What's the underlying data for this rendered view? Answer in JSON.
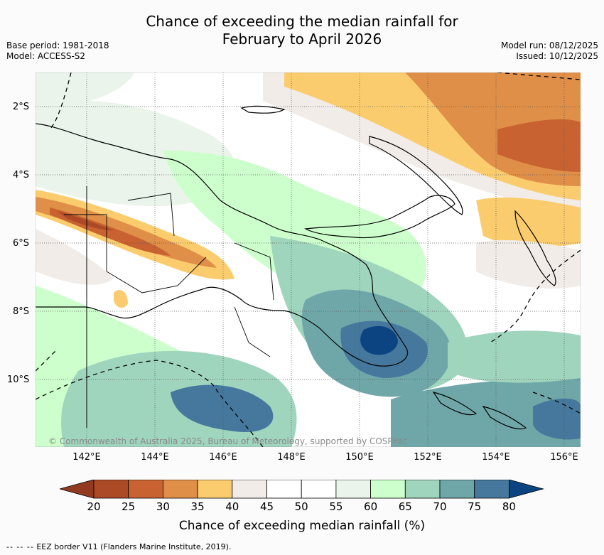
{
  "title": {
    "line1": "Chance of exceeding the median rainfall for",
    "line2": "February to April 2026"
  },
  "meta": {
    "base_period": "Base period: 1981-2018",
    "model": "Model: ACCESS-S2",
    "model_run": "Model run: 08/12/2025",
    "issued": "Issued: 10/12/2025"
  },
  "map": {
    "lat_labels": [
      "2°S",
      "4°S",
      "6°S",
      "8°S",
      "10°S"
    ],
    "lon_labels": [
      "142°E",
      "144°E",
      "146°E",
      "148°E",
      "150°E",
      "152°E",
      "154°E",
      "156°E"
    ],
    "copyright": "© Commonwealth of Australia 2025, Bureau of Meteorology, supported by COSPPac"
  },
  "colorbar": {
    "title": "Chance of exceeding median rainfall (%)",
    "ticks": [
      "20",
      "25",
      "30",
      "35",
      "40",
      "45",
      "50",
      "55",
      "60",
      "65",
      "70",
      "75",
      "80"
    ],
    "colors": [
      "#ad4a26",
      "#c96231",
      "#df8f48",
      "#fbcc6d",
      "#f1ece7",
      "#ffffff",
      "#ffffff",
      "#eaf4ea",
      "#ccffcc",
      "#9fd4bd",
      "#6fa7a8",
      "#45789c"
    ],
    "low_extend_color": "#923a20",
    "high_extend_color": "#0b4480"
  },
  "legend": {
    "dash_symbol": "--  --  --",
    "eez_text": "EEZ border V11 (Flanders Marine Institute, 2019)."
  }
}
